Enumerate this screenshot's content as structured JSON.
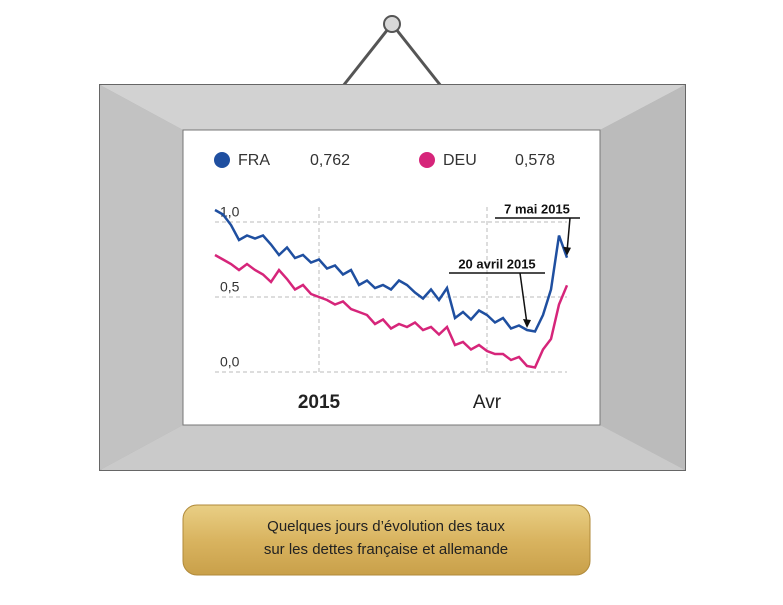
{
  "chart_data": {
    "type": "line",
    "categories": [
      null,
      null,
      null,
      null,
      null,
      null,
      null,
      null,
      null,
      null,
      null,
      null,
      null,
      "2015",
      null,
      null,
      null,
      null,
      null,
      null,
      null,
      null,
      null,
      null,
      null,
      null,
      null,
      null,
      null,
      null,
      null,
      null,
      null,
      null,
      "Avr",
      null,
      null,
      null,
      null,
      null,
      null,
      null,
      null,
      null,
      null
    ],
    "series": [
      {
        "name": "FRA",
        "color": "#1f4fa0",
        "latest_label": "0,762",
        "values": [
          1.08,
          1.05,
          0.98,
          0.88,
          0.91,
          0.89,
          0.91,
          0.85,
          0.78,
          0.83,
          0.76,
          0.78,
          0.73,
          0.75,
          0.69,
          0.71,
          0.65,
          0.68,
          0.58,
          0.61,
          0.56,
          0.58,
          0.55,
          0.61,
          0.58,
          0.53,
          0.49,
          0.55,
          0.48,
          0.56,
          0.36,
          0.4,
          0.35,
          0.41,
          0.38,
          0.33,
          0.36,
          0.29,
          0.31,
          0.28,
          0.27,
          0.38,
          0.55,
          0.91,
          0.762
        ]
      },
      {
        "name": "DEU",
        "color": "#d6257a",
        "latest_label": "0,578",
        "values": [
          0.78,
          0.75,
          0.72,
          0.68,
          0.72,
          0.68,
          0.65,
          0.6,
          0.68,
          0.62,
          0.55,
          0.58,
          0.52,
          0.5,
          0.48,
          0.45,
          0.47,
          0.42,
          0.4,
          0.38,
          0.32,
          0.35,
          0.29,
          0.32,
          0.3,
          0.33,
          0.28,
          0.3,
          0.25,
          0.3,
          0.18,
          0.2,
          0.15,
          0.18,
          0.14,
          0.12,
          0.12,
          0.08,
          0.1,
          0.04,
          0.03,
          0.15,
          0.22,
          0.45,
          0.578
        ]
      }
    ],
    "ylim": [
      0,
      1.1
    ],
    "yticks": [
      {
        "value": 0,
        "label": "0,0"
      },
      {
        "value": 0.5,
        "label": "0,5"
      },
      {
        "value": 1,
        "label": "1,0"
      }
    ],
    "grid": true,
    "annotations": [
      "7 mai 2015",
      "20 avril 2015"
    ]
  },
  "caption": [
    "Quelques jours d’évolution des taux",
    "sur les dettes française et allemande"
  ]
}
